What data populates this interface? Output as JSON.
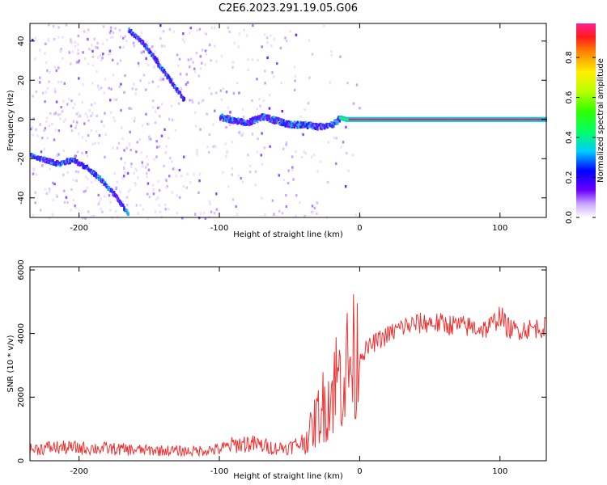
{
  "figure": {
    "title": "C2E6.2023.291.19.05.G06"
  },
  "chart_data": [
    {
      "type": "heatmap",
      "xlabel": "Height of straight line (km)",
      "ylabel": "Frequency (Hz)",
      "xlim": [
        -235,
        133
      ],
      "ylim": [
        -50,
        49
      ],
      "xticks": [
        -200,
        -100,
        0,
        100
      ],
      "yticks": [
        -40,
        -20,
        0,
        20,
        40
      ],
      "tracks": [
        {
          "x": [
            -235,
            -225,
            -215,
            -205,
            -195,
            -185,
            -175,
            -165
          ],
          "y": [
            -18,
            -20,
            -22,
            -20,
            -24,
            -30,
            -38,
            -48
          ]
        },
        {
          "x": [
            -165,
            -155,
            -145,
            -135,
            -125
          ],
          "y": [
            46,
            40,
            30,
            20,
            10
          ]
        },
        {
          "x": [
            -100,
            -90,
            -80,
            -70,
            -60,
            -50,
            -40,
            -30,
            -20,
            -15,
            -10,
            0,
            20,
            50,
            80,
            100,
            133
          ],
          "y": [
            2,
            0,
            -1,
            2,
            0,
            -2,
            -2,
            -3,
            -2,
            1,
            0,
            0,
            0,
            0,
            0,
            0,
            0
          ]
        }
      ],
      "colorbar": {
        "label": "Normalized spectral amplitude",
        "ticks": [
          0.0,
          0.2,
          0.4,
          0.6,
          0.8
        ],
        "range": [
          0,
          0.97
        ]
      }
    },
    {
      "type": "line",
      "xlabel": "Height of straight line (km)",
      "ylabel": "SNR (10 * v/v)",
      "xlim": [
        -235,
        133
      ],
      "ylim": [
        0,
        6100
      ],
      "xticks": [
        -200,
        -100,
        0,
        100
      ],
      "yticks": [
        0,
        2000,
        4000,
        6000
      ],
      "series_color": "#ee3333",
      "series": [
        {
          "x": [
            -235,
            -220,
            -200,
            -180,
            -160,
            -140,
            -120,
            -100,
            -90,
            -80,
            -70,
            -60,
            -50,
            -40,
            -35,
            -30,
            -25,
            -20,
            -18,
            -15,
            -10,
            -5,
            0,
            10,
            20,
            30,
            40,
            50,
            60,
            70,
            80,
            90,
            95,
            100,
            105,
            110,
            120,
            133
          ],
          "y": [
            350,
            420,
            400,
            380,
            340,
            320,
            300,
            360,
            500,
            550,
            480,
            400,
            420,
            600,
            900,
            1400,
            1800,
            2100,
            2500,
            2600,
            2900,
            3100,
            3300,
            3700,
            3950,
            4200,
            4300,
            4350,
            4300,
            4250,
            4200,
            4150,
            4300,
            4600,
            4200,
            4100,
            4150,
            4200
          ]
        }
      ]
    }
  ]
}
